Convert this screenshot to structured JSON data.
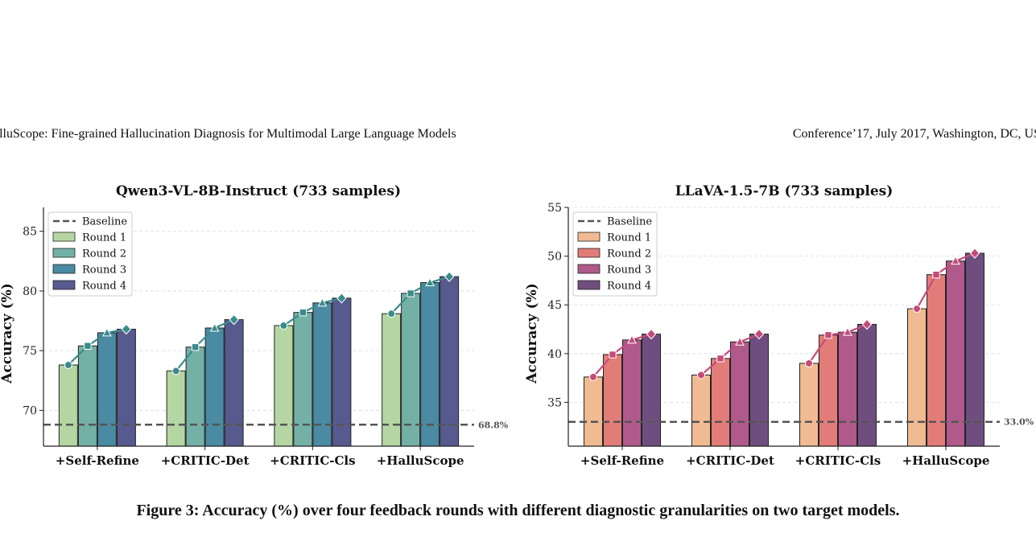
{
  "header": {
    "left": "alluScope: Fine-grained Hallucination Diagnosis for Multimodal Large Language Models",
    "right": "Conference’17, July 2017, Washington, DC, US"
  },
  "caption": "Figure 3: Accuracy (%) over four feedback rounds with different diagnostic granularities on two target models.",
  "chart_data": [
    {
      "type": "bar",
      "title": "Qwen3-VL-8B-Instruct (733 samples)",
      "ylabel": "Accuracy (%)",
      "ylim": [
        67,
        87
      ],
      "yticks": [
        70,
        75,
        80,
        85
      ],
      "categories": [
        "+Self-Refine",
        "+CRITIC-Det",
        "+CRITIC-Cls",
        "+HalluScope"
      ],
      "baseline": {
        "name": "Baseline",
        "value": 68.8,
        "label": "68.8%"
      },
      "series": [
        {
          "name": "Round 1",
          "color": "#b5d6a3",
          "values": [
            73.8,
            73.3,
            77.1,
            78.1
          ]
        },
        {
          "name": "Round 2",
          "color": "#73b1a6",
          "values": [
            75.4,
            75.3,
            78.2,
            79.8
          ]
        },
        {
          "name": "Round 3",
          "color": "#4a8aa3",
          "values": [
            76.5,
            76.9,
            79.0,
            80.7
          ]
        },
        {
          "name": "Round 4",
          "color": "#575a8f",
          "values": [
            76.8,
            77.6,
            79.4,
            81.2
          ]
        }
      ],
      "line_color": "#3a8b8b",
      "legend": "top-left",
      "grid": true
    },
    {
      "type": "bar",
      "title": "LLaVA-1.5-7B (733 samples)",
      "ylabel": "Accuracy (%)",
      "ylim": [
        30.5,
        55
      ],
      "yticks": [
        35,
        40,
        45,
        50,
        55
      ],
      "categories": [
        "+Self-Refine",
        "+CRITIC-Det",
        "+CRITIC-Cls",
        "+HalluScope"
      ],
      "baseline": {
        "name": "Baseline",
        "value": 33.0,
        "label": "33.0%"
      },
      "series": [
        {
          "name": "Round 1",
          "color": "#f0bb92",
          "values": [
            37.6,
            37.8,
            39.0,
            44.6
          ]
        },
        {
          "name": "Round 2",
          "color": "#e27c78",
          "values": [
            39.9,
            39.5,
            41.9,
            48.1
          ]
        },
        {
          "name": "Round 3",
          "color": "#b05a8b",
          "values": [
            41.4,
            41.2,
            42.2,
            49.5
          ]
        },
        {
          "name": "Round 4",
          "color": "#6f4e7f",
          "values": [
            42.0,
            42.0,
            43.0,
            50.3
          ]
        }
      ],
      "line_color": "#c64a78",
      "legend": "top-left",
      "grid": true
    }
  ]
}
